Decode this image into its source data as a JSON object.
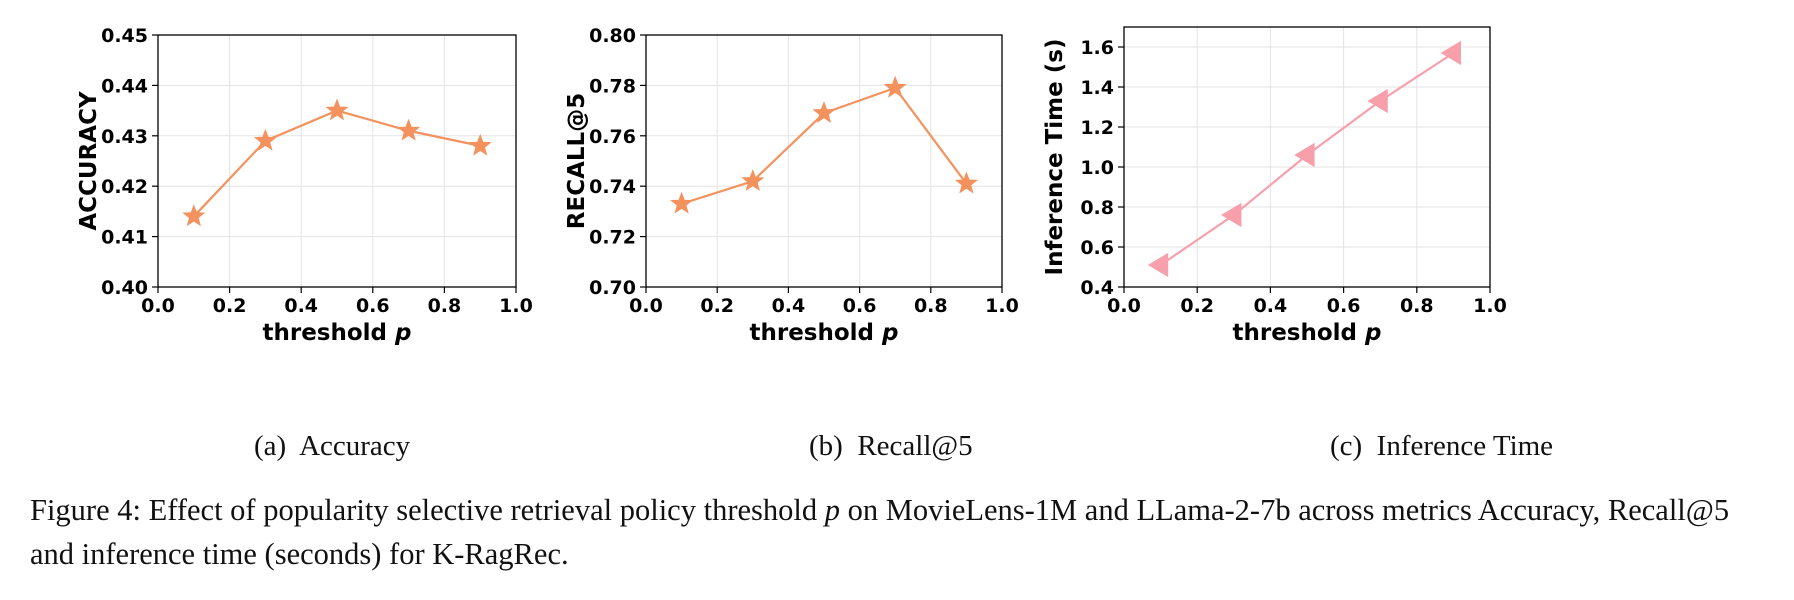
{
  "chart_data": [
    {
      "type": "line",
      "subcaption": "(a)  Accuracy",
      "xlabel": "threshold",
      "xlabel_var": "p",
      "ylabel": "ACCURACY",
      "xlim": [
        0.0,
        1.0
      ],
      "ylim": [
        0.4,
        0.45
      ],
      "xticks": [
        "0.0",
        "0.2",
        "0.4",
        "0.6",
        "0.8",
        "1.0"
      ],
      "yticks": [
        "0.40",
        "0.41",
        "0.42",
        "0.43",
        "0.44",
        "0.45"
      ],
      "grid": true,
      "color": "#f4925e",
      "marker": "star",
      "series": [
        {
          "x": [
            0.1,
            0.3,
            0.5,
            0.7,
            0.9
          ],
          "values": [
            0.414,
            0.429,
            0.435,
            0.431,
            0.428
          ]
        }
      ]
    },
    {
      "type": "line",
      "subcaption": "(b)  Recall@5",
      "xlabel": "threshold",
      "xlabel_var": "p",
      "ylabel": "RECALL@5",
      "xlim": [
        0.0,
        1.0
      ],
      "ylim": [
        0.7,
        0.8
      ],
      "xticks": [
        "0.0",
        "0.2",
        "0.4",
        "0.6",
        "0.8",
        "1.0"
      ],
      "yticks": [
        "0.70",
        "0.72",
        "0.74",
        "0.76",
        "0.78",
        "0.80"
      ],
      "grid": true,
      "color": "#f4925e",
      "marker": "star",
      "series": [
        {
          "x": [
            0.1,
            0.3,
            0.5,
            0.7,
            0.9
          ],
          "values": [
            0.733,
            0.742,
            0.769,
            0.779,
            0.741
          ]
        }
      ]
    },
    {
      "type": "line",
      "subcaption": "(c)  Inference Time",
      "xlabel": "threshold",
      "xlabel_var": "p",
      "ylabel": "Inference Time (s)",
      "xlim": [
        0.0,
        1.0
      ],
      "ylim": [
        0.4,
        1.7
      ],
      "xticks": [
        "0.0",
        "0.2",
        "0.4",
        "0.6",
        "0.8",
        "1.0"
      ],
      "yticks": [
        "0.4",
        "0.6",
        "0.8",
        "1.0",
        "1.2",
        "1.4",
        "1.6"
      ],
      "grid": true,
      "color": "#f7a0ac",
      "marker": "triangle-left",
      "series": [
        {
          "x": [
            0.1,
            0.3,
            0.5,
            0.7,
            0.9
          ],
          "values": [
            0.51,
            0.76,
            1.06,
            1.33,
            1.57
          ]
        }
      ]
    }
  ],
  "caption": {
    "prefix": "Figure 4: Effect of popularity selective retrieval policy threshold ",
    "var": "p",
    "suffix": " on MovieLens-1M and LLama-2-7b across metrics Accuracy, Recall@5 and inference time (seconds) for K-RagRec."
  }
}
